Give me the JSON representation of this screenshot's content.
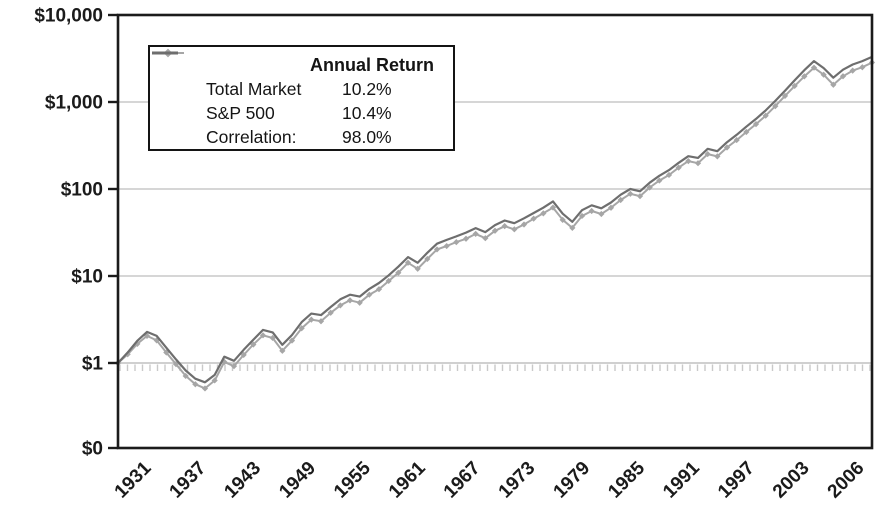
{
  "chart_data": {
    "type": "line",
    "description": "Growth of $1, log scale, Total Market vs S&P 500",
    "x_axis": {
      "year_start": 1928,
      "year_end": 2006,
      "labels": [
        "1931",
        "1937",
        "1943",
        "1949",
        "1955",
        "1961",
        "1967",
        "1973",
        "1979",
        "1985",
        "1991",
        "1997",
        "2003",
        "2006"
      ]
    },
    "y_axis": {
      "scale": "log",
      "ticks": [
        {
          "label": "$10,000",
          "value": 10000
        },
        {
          "label": "$1,000",
          "value": 1000
        },
        {
          "label": "$100",
          "value": 100
        },
        {
          "label": "$10",
          "value": 10
        },
        {
          "label": "$1",
          "value": 1
        },
        {
          "label": "$0",
          "value": 0
        }
      ]
    },
    "gridlines": [
      10,
      100,
      1000
    ],
    "baseline_value": 1,
    "colors": {
      "axis": "#1b1b1b",
      "grid": "#c9c9c9",
      "total_market": "#a6a6a6",
      "sp500": "#6e6e6e"
    },
    "series": [
      {
        "name": "Total Market",
        "annual_return": "10.2%",
        "marker": "diamond",
        "color": "#a6a6a6",
        "values": [
          1.0,
          1.26,
          1.66,
          2.05,
          1.82,
          1.32,
          0.97,
          0.71,
          0.57,
          0.51,
          0.63,
          1.03,
          0.92,
          1.24,
          1.63,
          2.08,
          1.94,
          1.38,
          1.81,
          2.51,
          3.15,
          3.02,
          3.78,
          4.59,
          5.25,
          4.93,
          6.1,
          7.05,
          8.77,
          10.9,
          14.2,
          12.1,
          15.7,
          20.2,
          22.1,
          24.5,
          26.8,
          30.5,
          27.2,
          33.1,
          37.4,
          34.4,
          39.1,
          45.6,
          52.5,
          61.2,
          44.2,
          35.7,
          49.0,
          55.9,
          51.6,
          60.9,
          74.8,
          88.0,
          82.7,
          104,
          125,
          145,
          176,
          209,
          198,
          252,
          237,
          300,
          365,
          452,
          557,
          696,
          896,
          1175,
          1530,
          1970,
          2480,
          2060,
          1580,
          1975,
          2295,
          2510,
          2840
        ]
      },
      {
        "name": "S&P 500",
        "annual_return": "10.4%",
        "marker": "none",
        "color": "#6e6e6e",
        "values": [
          1.0,
          1.32,
          1.8,
          2.28,
          2.05,
          1.5,
          1.1,
          0.82,
          0.66,
          0.6,
          0.73,
          1.18,
          1.06,
          1.42,
          1.85,
          2.4,
          2.25,
          1.62,
          2.1,
          2.95,
          3.7,
          3.55,
          4.4,
          5.4,
          6.1,
          5.8,
          7.1,
          8.3,
          10.2,
          12.8,
          16.5,
          14.2,
          18.5,
          23.5,
          26.0,
          28.5,
          31.5,
          35.5,
          32.0,
          38.5,
          43.5,
          40.5,
          46.0,
          53.0,
          61.0,
          72.0,
          52.0,
          42.0,
          57.0,
          65.0,
          60.0,
          70.0,
          86.0,
          100,
          94.0,
          118,
          142,
          165,
          200,
          238,
          228,
          290,
          272,
          345,
          420,
          520,
          640,
          800,
          1030,
          1350,
          1780,
          2320,
          2950,
          2450,
          1900,
          2350,
          2700,
          2950,
          3300
        ]
      }
    ],
    "legend": {
      "header": "Annual Return",
      "correlation_label": "Correlation:",
      "correlation_value": "98.0%"
    }
  }
}
